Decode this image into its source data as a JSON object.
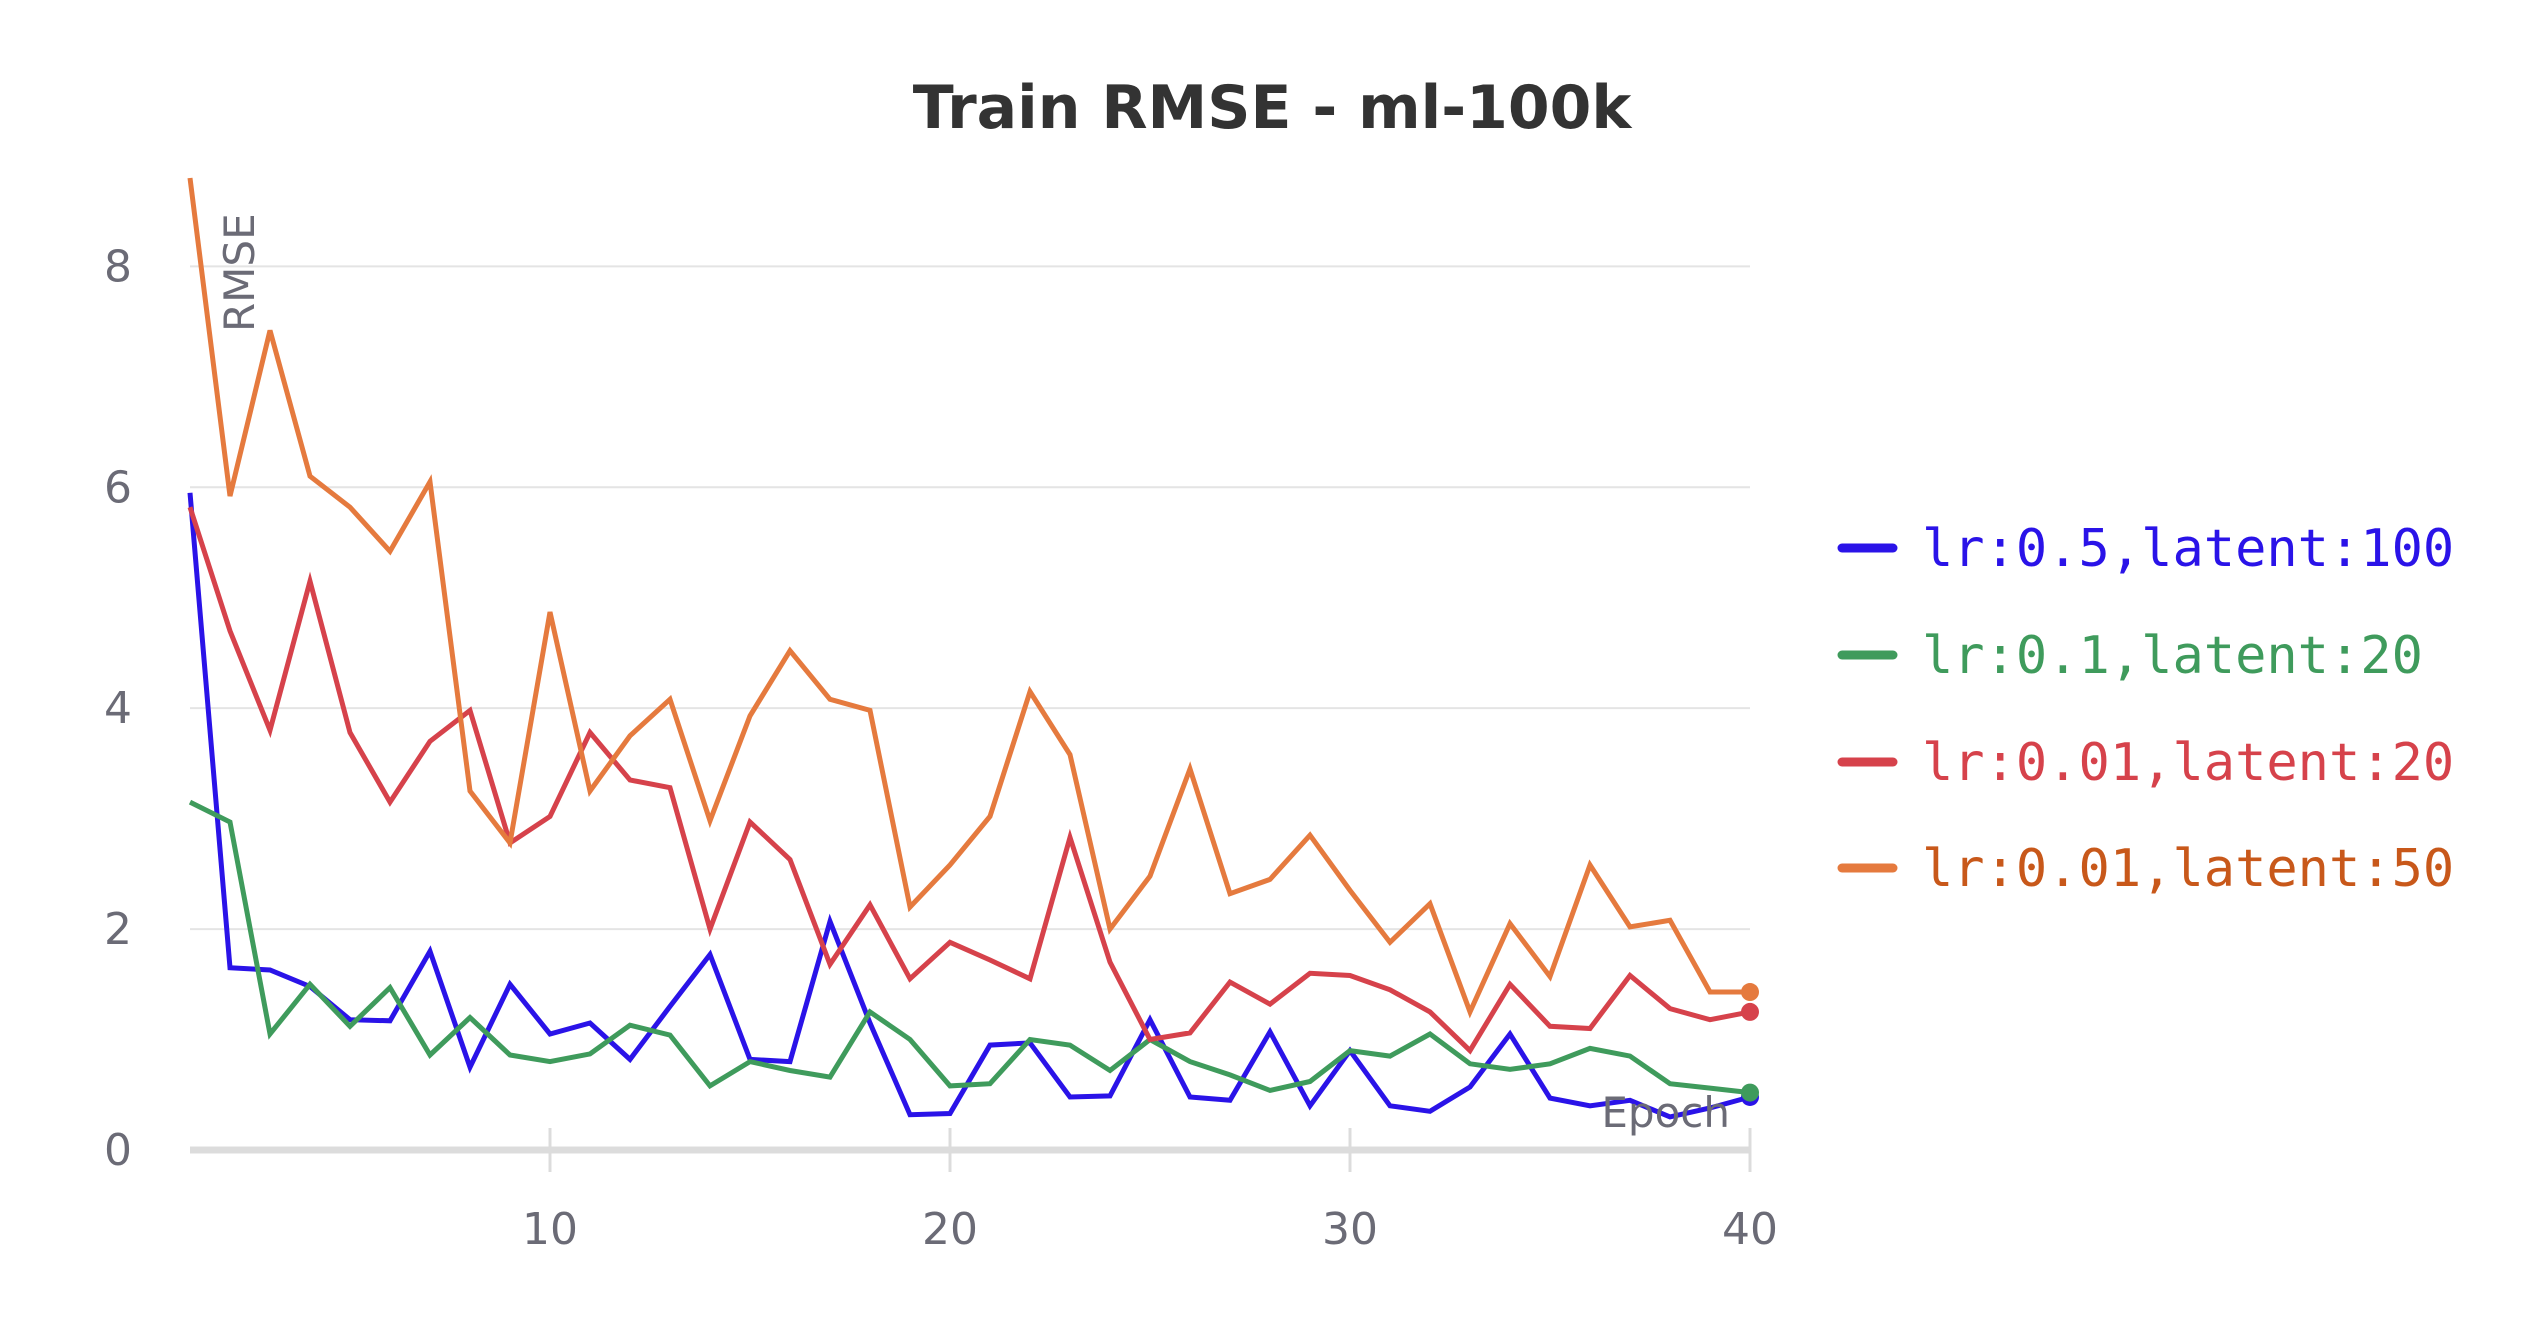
{
  "chart_data": {
    "type": "line",
    "title": "Train RMSE - ml-100k",
    "xlabel": "Epoch",
    "ylabel": "RMSE",
    "xlim": [
      1,
      40
    ],
    "ylim": [
      0,
      8.8
    ],
    "x_ticks": [
      10,
      20,
      30,
      40
    ],
    "y_ticks": [
      0,
      2,
      4,
      6,
      8
    ],
    "grid": true,
    "legend_position": "right",
    "x": [
      1,
      2,
      3,
      4,
      5,
      6,
      7,
      8,
      9,
      10,
      11,
      12,
      13,
      14,
      15,
      16,
      17,
      18,
      19,
      20,
      21,
      22,
      23,
      24,
      25,
      26,
      27,
      28,
      29,
      30,
      31,
      32,
      33,
      34,
      35,
      36,
      37,
      38,
      39,
      40
    ],
    "series": [
      {
        "name": "lr:0.5,latent:100",
        "color": "#2a13e8",
        "values": [
          5.95,
          1.65,
          1.63,
          1.48,
          1.18,
          1.17,
          1.8,
          0.75,
          1.5,
          1.05,
          1.15,
          0.82,
          1.3,
          1.77,
          0.82,
          0.8,
          2.07,
          1.15,
          0.32,
          0.33,
          0.95,
          0.97,
          0.48,
          0.49,
          1.18,
          0.48,
          0.45,
          1.07,
          0.4,
          0.9,
          0.4,
          0.35,
          0.57,
          1.05,
          0.47,
          0.4,
          0.45,
          0.3,
          0.38,
          0.48
        ]
      },
      {
        "name": "lr:0.1,latent:20",
        "color": "#3f9b5c",
        "values": [
          3.15,
          2.97,
          1.05,
          1.5,
          1.12,
          1.47,
          0.86,
          1.2,
          0.86,
          0.8,
          0.87,
          1.13,
          1.04,
          0.58,
          0.8,
          0.72,
          0.66,
          1.25,
          1.0,
          0.58,
          0.6,
          1.0,
          0.95,
          0.72,
          1.0,
          0.8,
          0.68,
          0.54,
          0.62,
          0.9,
          0.85,
          1.05,
          0.78,
          0.73,
          0.78,
          0.92,
          0.85,
          0.6,
          0.56,
          0.52
        ]
      },
      {
        "name": "lr:0.01,latent:20",
        "color": "#d6424b",
        "values": [
          5.82,
          4.7,
          3.8,
          5.15,
          3.78,
          3.15,
          3.7,
          3.98,
          2.78,
          3.02,
          3.78,
          3.35,
          3.28,
          2.0,
          2.97,
          2.63,
          1.68,
          2.22,
          1.55,
          1.88,
          1.72,
          1.55,
          2.83,
          1.7,
          1.0,
          1.06,
          1.52,
          1.32,
          1.6,
          1.58,
          1.45,
          1.25,
          0.9,
          1.5,
          1.12,
          1.1,
          1.58,
          1.28,
          1.18,
          1.25
        ]
      },
      {
        "name": "lr:0.01,latent:50",
        "color": "#e57a3e",
        "values": [
          8.8,
          5.92,
          7.42,
          6.1,
          5.82,
          5.42,
          6.05,
          3.25,
          2.78,
          4.87,
          3.25,
          3.75,
          4.08,
          2.98,
          3.93,
          4.52,
          4.08,
          3.98,
          2.2,
          2.58,
          3.02,
          4.15,
          3.58,
          2.0,
          2.48,
          3.45,
          2.32,
          2.45,
          2.85,
          2.35,
          1.88,
          2.23,
          1.25,
          2.05,
          1.57,
          2.58,
          2.02,
          2.08,
          1.43,
          1.43
        ]
      }
    ]
  },
  "legend": {
    "text_colors": [
      "#2a13e8",
      "#3f9b5c",
      "#d6424b",
      "#c8581a"
    ]
  }
}
